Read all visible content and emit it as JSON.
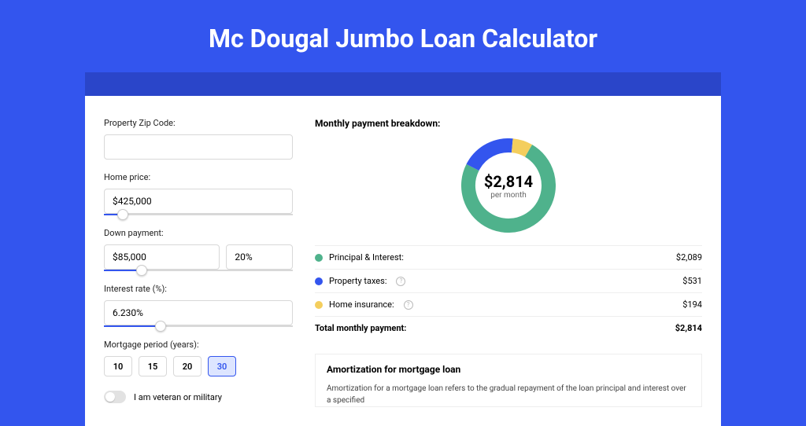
{
  "title": "Mc Dougal Jumbo Loan Calculator",
  "colors": {
    "page_bg": "#3355ee",
    "header_strip": "#2a45c9",
    "card_bg": "#ffffff",
    "slider_fill": "#3355ee"
  },
  "form": {
    "zip": {
      "label": "Property Zip Code:",
      "value": ""
    },
    "price": {
      "label": "Home price:",
      "value": "$425,000",
      "slider_pct": 10
    },
    "down": {
      "label": "Down payment:",
      "value": "$85,000",
      "percent": "20%",
      "slider_pct": 20
    },
    "rate": {
      "label": "Interest rate (%):",
      "value": "6.230%",
      "slider_pct": 30
    },
    "period": {
      "label": "Mortgage period (years):",
      "options": [
        "10",
        "15",
        "20",
        "30"
      ],
      "selected": "30"
    },
    "veteran_label": "I am veteran or military"
  },
  "breakdown": {
    "title": "Monthly payment breakdown:",
    "amount": "$2,814",
    "sub": "per month",
    "items": [
      {
        "label": "Principal & Interest:",
        "value": "$2,089",
        "color": "#4fb28c",
        "info": false,
        "pct": 74
      },
      {
        "label": "Property taxes:",
        "value": "$531",
        "color": "#3355ee",
        "info": true,
        "pct": 19
      },
      {
        "label": "Home insurance:",
        "value": "$194",
        "color": "#f4ce5d",
        "info": true,
        "pct": 7
      }
    ],
    "total_label": "Total monthly payment:",
    "total_value": "$2,814",
    "donut": {
      "size": 120,
      "thickness": 18
    }
  },
  "amort": {
    "title": "Amortization for mortgage loan",
    "text": "Amortization for a mortgage loan refers to the gradual repayment of the loan principal and interest over a specified"
  }
}
